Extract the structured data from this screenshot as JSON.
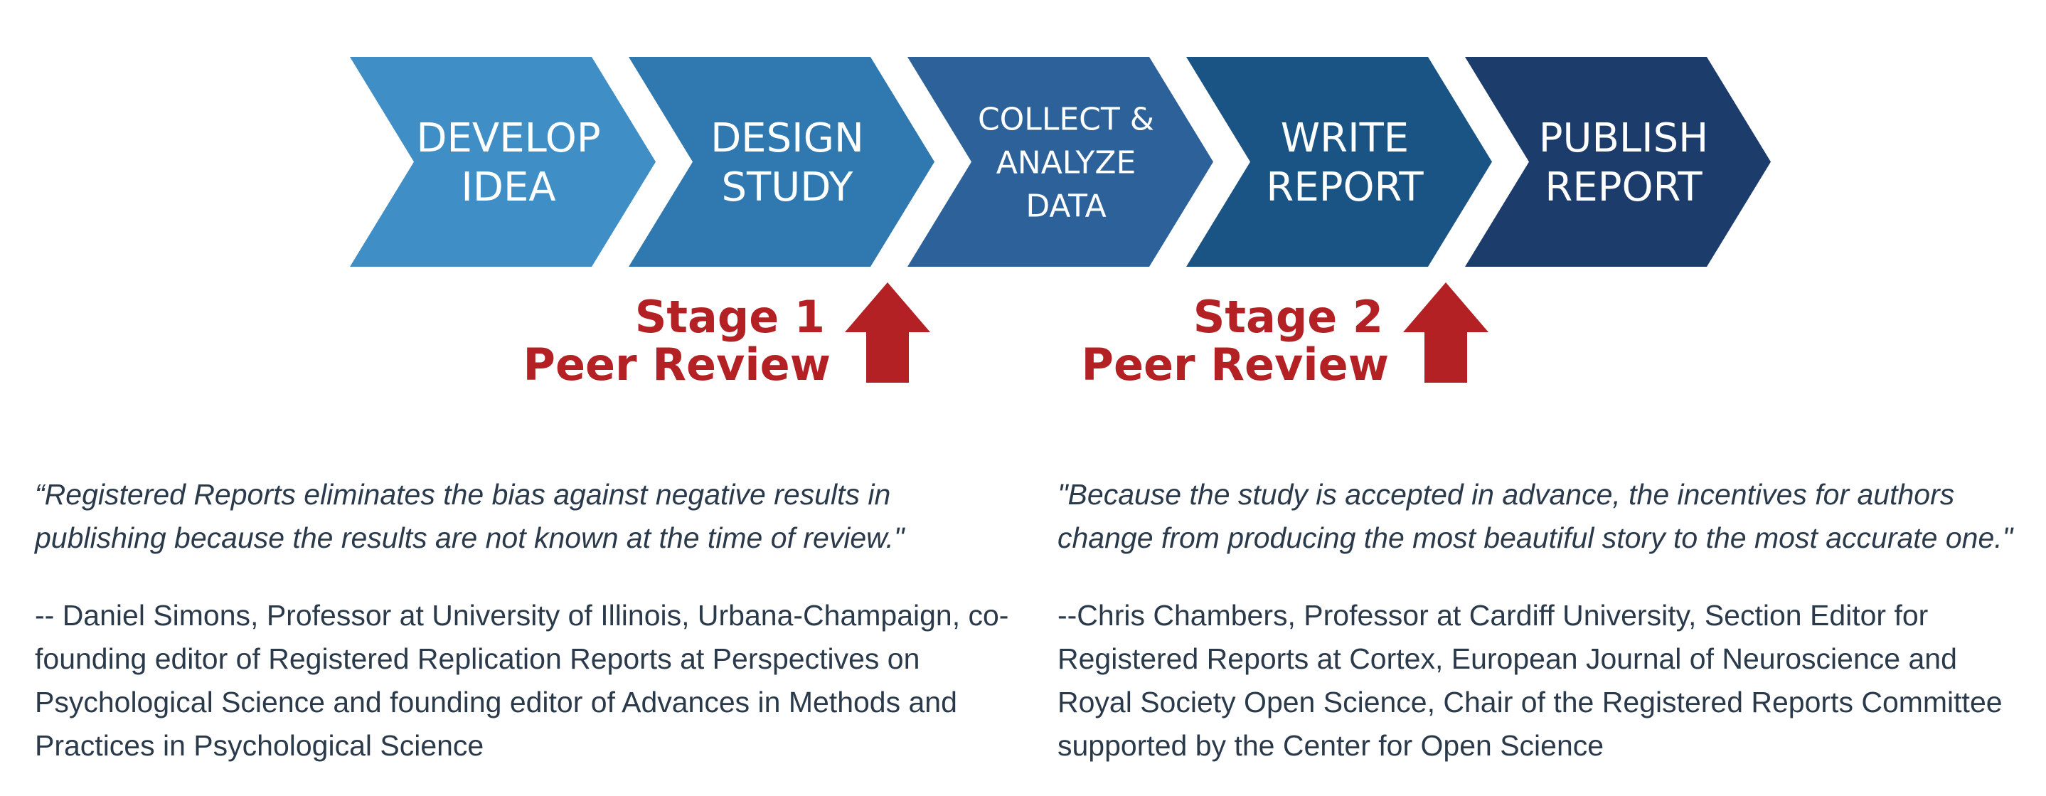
{
  "steps": [
    {
      "lines": [
        "DEVELOP",
        "IDEA"
      ],
      "color": "#3f8fc6"
    },
    {
      "lines": [
        "DESIGN",
        "STUDY"
      ],
      "color": "#2f79b0"
    },
    {
      "lines": [
        "COLLECT &",
        "ANALYZE",
        "DATA"
      ],
      "color": "#2d6199"
    },
    {
      "lines": [
        "WRITE",
        "REPORT"
      ],
      "color": "#1a5485"
    },
    {
      "lines": [
        "PUBLISH",
        "REPORT"
      ],
      "color": "#1c3c6c"
    }
  ],
  "reviews": [
    {
      "line1": "Stage 1",
      "line2": "Peer Review"
    },
    {
      "line1": "Stage 2",
      "line2": "Peer Review"
    }
  ],
  "review_color": "#b32124",
  "quotes": [
    {
      "text": "“Registered Reports eliminates the bias against negative results in publishing because the results are not known at the time of review.\"",
      "attribution": "-- Daniel Simons, Professor at University of Illinois, Urbana-Champaign, co-founding editor of Registered Replication Reports at Perspectives on Psychological Science and founding editor of Advances in Methods and Practices in Psychological Science"
    },
    {
      "text": "\"Because the study is accepted in advance, the incentives for authors change from producing the most beautiful story to the most accurate one.\"",
      "attribution": "--Chris Chambers, Professor at Cardiff University, Section Editor for Registered Reports at Cortex, European Journal of Neuroscience and Royal Society Open Science, Chair of the Registered Reports Committee supported by the Center for Open Science"
    }
  ]
}
